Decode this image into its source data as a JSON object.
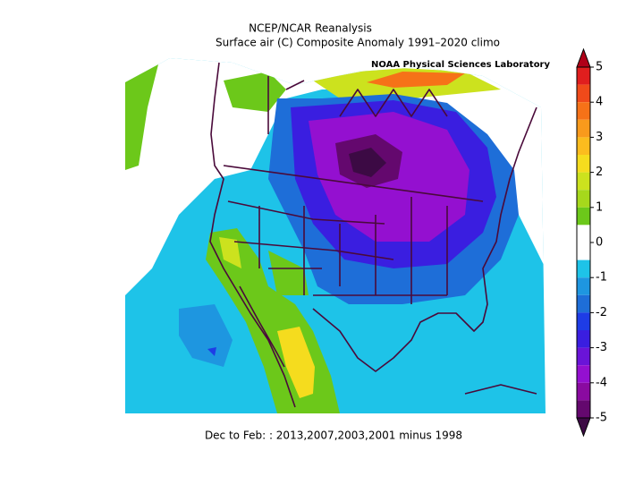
{
  "header": {
    "title": "NCEP/NCAR Reanalysis",
    "subtitle": "Surface air (C) Composite Anomaly 1991–2020 climo",
    "lab": "NOAA Physical Sciences Laboratory"
  },
  "footer": "Dec to Feb: : 2013,2007,2003,2001 minus 1998",
  "colorbar": {
    "ticks": [
      5,
      4,
      3,
      2,
      1,
      0,
      -1,
      -2,
      -3,
      -4,
      -5
    ],
    "lim": [
      -5,
      5
    ],
    "colors": [
      "#b00018",
      "#e01e1e",
      "#f04a1a",
      "#f67218",
      "#f99a1c",
      "#fbbc1e",
      "#f5dc1e",
      "#cce21e",
      "#a6d81c",
      "#6cc81a",
      "#ffffff",
      "#ffffff",
      "#1ec3e8",
      "#1e96e0",
      "#1e6ed8",
      "#1e3ce6",
      "#3a1ee0",
      "#6a14d8",
      "#9410d0",
      "#8a0aa0",
      "#64086e",
      "#3c0a44"
    ]
  }
}
